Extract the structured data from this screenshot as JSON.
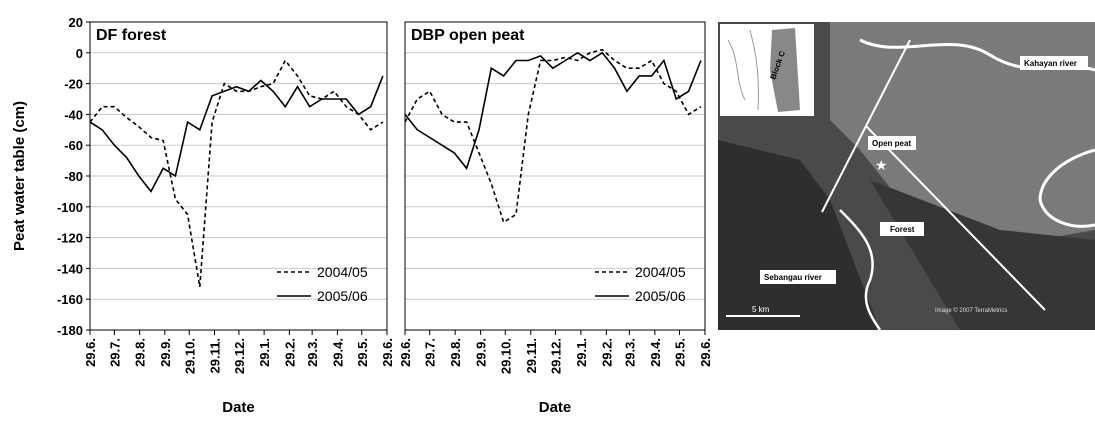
{
  "chart_data": [
    {
      "type": "line",
      "title": "DF forest",
      "ylabel": "Peat water table (cm)",
      "xlabel": "Date",
      "x": [
        0,
        15,
        30,
        45,
        60,
        75,
        90,
        105,
        120,
        135,
        150,
        165,
        180,
        195,
        210,
        225,
        240,
        255,
        270,
        285,
        300,
        315,
        330,
        345,
        360
      ],
      "xlim": [
        0,
        365
      ],
      "xticks": [
        {
          "value": 0,
          "label": "29.6."
        },
        {
          "value": 30,
          "label": "29.7."
        },
        {
          "value": 61,
          "label": "29.8."
        },
        {
          "value": 92,
          "label": "29.9."
        },
        {
          "value": 122,
          "label": "29.10."
        },
        {
          "value": 153,
          "label": "29.11."
        },
        {
          "value": 183,
          "label": "29.12."
        },
        {
          "value": 214,
          "label": "29.1."
        },
        {
          "value": 245,
          "label": "29.2."
        },
        {
          "value": 273,
          "label": "29.3."
        },
        {
          "value": 304,
          "label": "29.4."
        },
        {
          "value": 334,
          "label": "29.5."
        },
        {
          "value": 365,
          "label": "29.6."
        }
      ],
      "ylim": [
        -180,
        20
      ],
      "yticks": [
        -180,
        -160,
        -140,
        -120,
        -100,
        -80,
        -60,
        -40,
        -20,
        0,
        20
      ],
      "show_ytick_labels": true,
      "grid": true,
      "legend": "lower right",
      "series": [
        {
          "name": "2004/05",
          "color": "#000000",
          "dash": "dashed",
          "values": [
            -45,
            -35,
            -35,
            -42,
            -48,
            -55,
            -57,
            -95,
            -105,
            -152,
            -45,
            -20,
            -25,
            -25,
            -22,
            -20,
            -5,
            -15,
            -28,
            -30,
            -25,
            -35,
            -40,
            -50,
            -45
          ]
        },
        {
          "name": "2005/06",
          "color": "#000000",
          "dash": "solid",
          "values": [
            -45,
            -50,
            -60,
            -68,
            -80,
            -90,
            -75,
            -80,
            -45,
            -50,
            -28,
            -25,
            -22,
            -25,
            -18,
            -25,
            -35,
            -22,
            -35,
            -30,
            -30,
            -30,
            -40,
            -35,
            -15
          ]
        }
      ]
    },
    {
      "type": "line",
      "title": "DBP open peat",
      "xlabel": "Date",
      "x": [
        0,
        15,
        30,
        45,
        60,
        75,
        90,
        105,
        120,
        135,
        150,
        165,
        180,
        195,
        210,
        225,
        240,
        255,
        270,
        285,
        300,
        315,
        330,
        345,
        360
      ],
      "xlim": [
        0,
        365
      ],
      "xticks": [
        {
          "value": 0,
          "label": "29.6."
        },
        {
          "value": 30,
          "label": "29.7."
        },
        {
          "value": 61,
          "label": "29.8."
        },
        {
          "value": 92,
          "label": "29.9."
        },
        {
          "value": 122,
          "label": "29.10."
        },
        {
          "value": 153,
          "label": "29.11."
        },
        {
          "value": 183,
          "label": "29.12."
        },
        {
          "value": 214,
          "label": "29.1."
        },
        {
          "value": 245,
          "label": "29.2."
        },
        {
          "value": 273,
          "label": "29.3."
        },
        {
          "value": 304,
          "label": "29.4."
        },
        {
          "value": 334,
          "label": "29.5."
        },
        {
          "value": 365,
          "label": "29.6."
        }
      ],
      "ylim": [
        -180,
        20
      ],
      "yticks": [
        -180,
        -160,
        -140,
        -120,
        -100,
        -80,
        -60,
        -40,
        -20,
        0,
        20
      ],
      "show_ytick_labels": false,
      "grid": true,
      "legend": "lower right",
      "series": [
        {
          "name": "2004/05",
          "color": "#000000",
          "dash": "dashed",
          "values": [
            -45,
            -30,
            -25,
            -40,
            -45,
            -45,
            -65,
            -85,
            -110,
            -105,
            -40,
            -5,
            -5,
            -3,
            -5,
            0,
            2,
            -5,
            -10,
            -10,
            -5,
            -20,
            -25,
            -40,
            -35
          ]
        },
        {
          "name": "2005/06",
          "color": "#000000",
          "dash": "solid",
          "values": [
            -40,
            -50,
            -55,
            -60,
            -65,
            -75,
            -50,
            -10,
            -15,
            -5,
            -5,
            -2,
            -10,
            -5,
            0,
            -5,
            0,
            -10,
            -25,
            -15,
            -15,
            -5,
            -30,
            -25,
            -5
          ]
        }
      ]
    }
  ],
  "map": {
    "labels": {
      "kahayan": "Kahayan river",
      "open_peat": "Open peat",
      "forest": "Forest",
      "sebangau": "Sebangau river",
      "scale": "5 km",
      "credit": "Image © 2007 TerraMetrics",
      "block": "Block C"
    }
  }
}
